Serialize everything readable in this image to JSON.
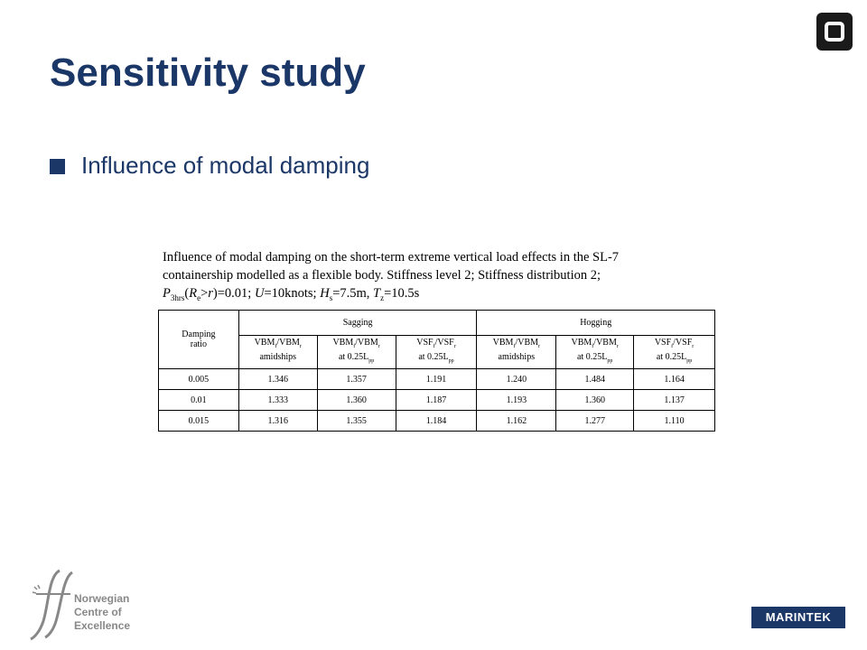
{
  "title": "Sensitivity study",
  "bullet": "Influence of modal damping",
  "caption": {
    "line1": "Influence of modal damping on the short-term extreme vertical load effects in the SL-7",
    "line2": "containership modelled as a flexible body. Stiffness level 2; Stiffness distribution 2;",
    "p": "P",
    "p_sub": "3hrs",
    "paren_open": "(",
    "r": "R",
    "r_sub": "e",
    "gt": ">",
    "r2": "r",
    "eq_p": ")=0.01; ",
    "u": "U",
    "u_rest": "=10knots; ",
    "h": "H",
    "h_sub": "s",
    "h_rest": "=7.5m, ",
    "t": "T",
    "t_sub": "z",
    "t_rest": "=10.5s"
  },
  "table": {
    "damping_header_line1": "Damping",
    "damping_header_line2": "ratio",
    "group_sagging": "Sagging",
    "group_hogging": "Hogging",
    "col_labels": [
      {
        "a": "VBM",
        "a_sub": "f",
        "b": "/VBM",
        "b_sub": "r",
        "line2": "amidships",
        "line2_sub": ""
      },
      {
        "a": "VBM",
        "a_sub": "f",
        "b": "/VBM",
        "b_sub": "r",
        "line2": "at 0.25L",
        "line2_sub": "pp"
      },
      {
        "a": "VSF",
        "a_sub": "f",
        "b": "/VSF",
        "b_sub": "r",
        "line2": "at 0.25L",
        "line2_sub": "pp"
      },
      {
        "a": "VBM",
        "a_sub": "f",
        "b": "/VBM",
        "b_sub": "r",
        "line2": "amidships",
        "line2_sub": ""
      },
      {
        "a": "VBM",
        "a_sub": "f",
        "b": "/VBM",
        "b_sub": "r",
        "line2": "at 0.25L",
        "line2_sub": "pp"
      },
      {
        "a": "VSF",
        "a_sub": "f",
        "b": "/VSF",
        "b_sub": "r",
        "line2": "at 0.25L",
        "line2_sub": "pp"
      }
    ],
    "rows": [
      [
        "0.005",
        "1.346",
        "1.357",
        "1.191",
        "1.240",
        "1.484",
        "1.164"
      ],
      [
        "0.01",
        "1.333",
        "1.360",
        "1.187",
        "1.193",
        "1.360",
        "1.137"
      ],
      [
        "0.015",
        "1.316",
        "1.355",
        "1.184",
        "1.162",
        "1.277",
        "1.110"
      ]
    ]
  },
  "footer": {
    "line1": "Norwegian",
    "line2": "Centre of",
    "line3": "Excellence",
    "marintek": "MARINTEK"
  },
  "colors": {
    "title": "#1b3768",
    "footer_gray": "#888888",
    "marintek_bg": "#1b3768"
  }
}
